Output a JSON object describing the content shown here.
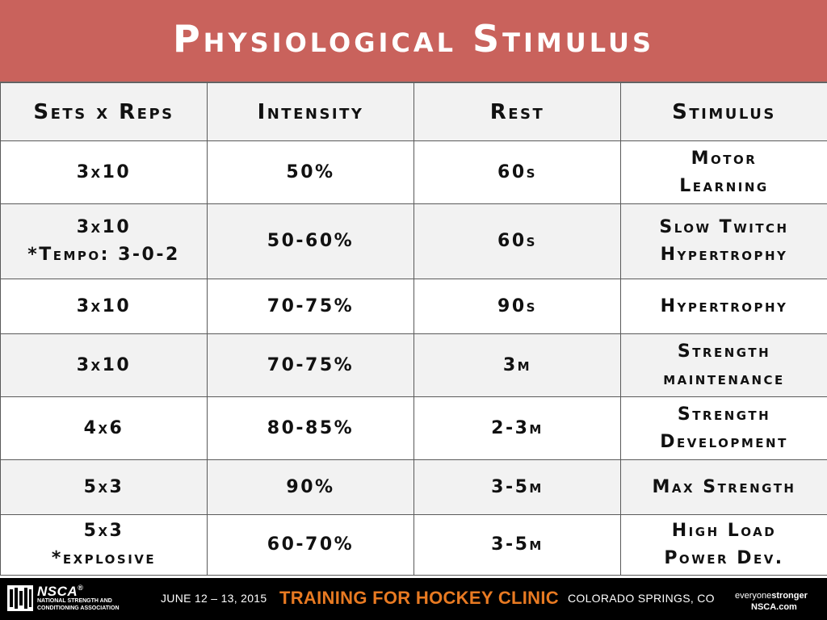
{
  "title": "Physiological Stimulus",
  "table": {
    "headers": [
      "Sets x Reps",
      "Intensity",
      "Rest",
      "Stimulus"
    ],
    "rows": [
      [
        [
          "3x10"
        ],
        [
          "50%"
        ],
        [
          "60s"
        ],
        [
          "Motor",
          "Learning"
        ]
      ],
      [
        [
          "3x10",
          "*Tempo: 3-0-2"
        ],
        [
          "50-60%"
        ],
        [
          "60s"
        ],
        [
          "Slow Twitch",
          "Hypertrophy"
        ]
      ],
      [
        [
          "3x10"
        ],
        [
          "70-75%"
        ],
        [
          "90s"
        ],
        [
          "Hypertrophy"
        ]
      ],
      [
        [
          "3x10"
        ],
        [
          "70-75%"
        ],
        [
          "3m"
        ],
        [
          "Strength",
          "maintenance"
        ]
      ],
      [
        [
          "4x6"
        ],
        [
          "80-85%"
        ],
        [
          "2-3m"
        ],
        [
          "Strength",
          "Development"
        ]
      ],
      [
        [
          "5x3"
        ],
        [
          "90%"
        ],
        [
          "3-5m"
        ],
        [
          "Max Strength"
        ]
      ],
      [
        [
          "5x3",
          "*explosive"
        ],
        [
          "60-70%"
        ],
        [
          "3-5m"
        ],
        [
          "High Load",
          "Power Dev."
        ]
      ]
    ]
  },
  "footer": {
    "logo_name": "NSCA",
    "logo_registered": "®",
    "logo_sub_1": "NATIONAL STRENGTH AND",
    "logo_sub_2": "CONDITIONING ASSOCIATION",
    "date": "JUNE 12 – 13, 2015",
    "event": "TRAINING FOR HOCKEY CLINIC",
    "location": "COLORADO SPRINGS, CO",
    "tagline_light": "everyone",
    "tagline_bold": "stronger",
    "site": "NSCA.com"
  },
  "colors": {
    "title_bar": "#c9625c",
    "event_text": "#e87a22",
    "footer_bg": "#000000",
    "alt_row": "#f2f2f2"
  }
}
